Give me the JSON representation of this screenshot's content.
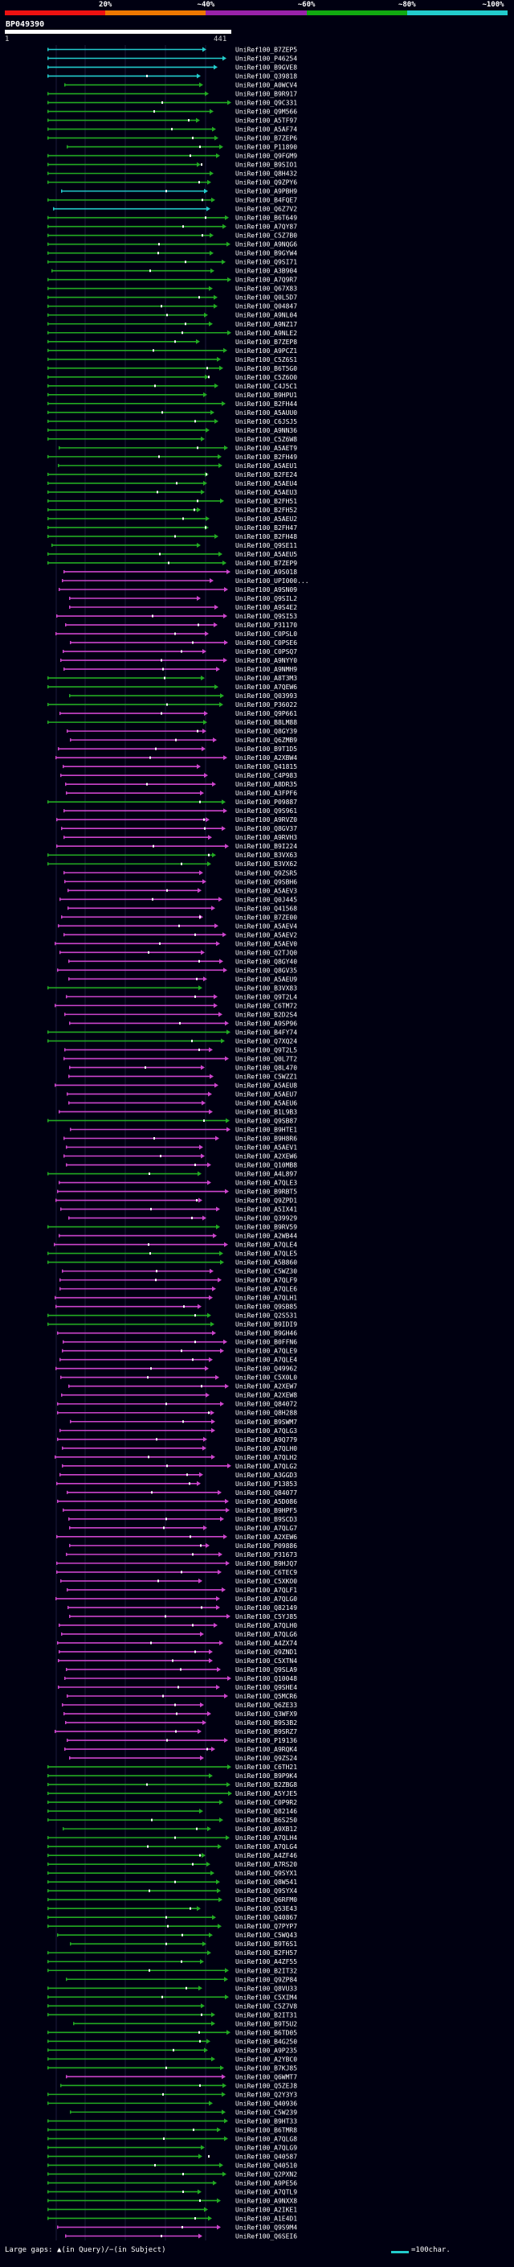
{
  "scale": {
    "labels": [
      "20%",
      "~40%",
      "~60%",
      "~80%",
      "~100%"
    ],
    "colors": [
      "#ee1111",
      "#ee7700",
      "#9922aa",
      "#11aa11",
      "#22cccc"
    ]
  },
  "query": {
    "id": "BP049390",
    "start": "1",
    "end": "441"
  },
  "hits": [
    {
      "label": "UniRef100_B7ZEP5",
      "color": "#22cccc"
    },
    {
      "label": "UniRef100_P46254",
      "color": "#22cccc"
    },
    {
      "label": "UniRef100_B9GVE8",
      "color": "#22cccc"
    },
    {
      "label": "UniRef100_Q39818",
      "color": "#22cccc"
    },
    {
      "label": "UniRef100_A0WCV4",
      "color": "#22aa22"
    },
    {
      "label": "UniRef100_B9R917",
      "color": "#22aa22"
    },
    {
      "label": "UniRef100_Q9C331",
      "color": "#22aa22"
    },
    {
      "label": "UniRef100_Q9M566",
      "color": "#22aa22"
    },
    {
      "label": "UniRef100_A5TF97",
      "color": "#22aa22"
    },
    {
      "label": "UniRef100_A5AF74",
      "color": "#22aa22"
    },
    {
      "label": "UniRef100_B7ZEP6",
      "color": "#22aa22"
    },
    {
      "label": "UniRef100_P11890",
      "color": "#22aa22"
    },
    {
      "label": "UniRef100_Q9FGM9",
      "color": "#22aa22"
    },
    {
      "label": "UniRef100_B9SIO1",
      "color": "#22aa22"
    },
    {
      "label": "UniRef100_Q8H432",
      "color": "#22aa22"
    },
    {
      "label": "UniRef100_Q9ZPY6",
      "color": "#22aa22"
    },
    {
      "label": "UniRef100_A9PBH9",
      "color": "#22cccc"
    },
    {
      "label": "UniRef100_B4FQE7",
      "color": "#22aa22"
    },
    {
      "label": "UniRef100_Q6Z7V2",
      "color": "#22cccc"
    },
    {
      "label": "UniRef100_B6T649",
      "color": "#22aa22"
    },
    {
      "label": "UniRef100_A7QY87",
      "color": "#22aa22"
    },
    {
      "label": "UniRef100_C5Z7B0",
      "color": "#22aa22"
    },
    {
      "label": "UniRef100_A9NQG6",
      "color": "#22aa22"
    },
    {
      "label": "UniRef100_B9GYW4",
      "color": "#22aa22"
    },
    {
      "label": "UniRef100_Q9SI71",
      "color": "#22aa22"
    },
    {
      "label": "UniRef100_A3B904",
      "color": "#22aa22"
    },
    {
      "label": "UniRef100_A7Q9R7",
      "color": "#22aa22"
    },
    {
      "label": "UniRef100_Q67X83",
      "color": "#22aa22"
    },
    {
      "label": "UniRef100_Q0L5D7",
      "color": "#22aa22"
    },
    {
      "label": "UniRef100_Q04847",
      "color": "#22aa22"
    },
    {
      "label": "UniRef100_A9NL04",
      "color": "#22aa22"
    },
    {
      "label": "UniRef100_A9NZ17",
      "color": "#22aa22"
    },
    {
      "label": "UniRef100_A9NLE2",
      "color": "#22aa22"
    },
    {
      "label": "UniRef100_B7ZEP8",
      "color": "#22aa22"
    },
    {
      "label": "UniRef100_A9PCZ1",
      "color": "#22aa22"
    },
    {
      "label": "UniRef100_C5Z6S1",
      "color": "#22aa22"
    },
    {
      "label": "UniRef100_B6T5G0",
      "color": "#22aa22"
    },
    {
      "label": "UniRef100_C5Z6O0",
      "color": "#22aa22"
    },
    {
      "label": "UniRef100_C4J5C1",
      "color": "#22aa22"
    },
    {
      "label": "UniRef100_B9HPU1",
      "color": "#22aa22"
    },
    {
      "label": "UniRef100_B2FH44",
      "color": "#22aa22"
    },
    {
      "label": "UniRef100_A5AUU0",
      "color": "#22aa22"
    },
    {
      "label": "UniRef100_C6JSJ5",
      "color": "#22aa22"
    },
    {
      "label": "UniRef100_A9NN36",
      "color": "#22aa22"
    },
    {
      "label": "UniRef100_C5Z6W8",
      "color": "#22aa22"
    },
    {
      "label": "UniRef100_A5AET9",
      "color": "#22aa22"
    },
    {
      "label": "UniRef100_B2FH49",
      "color": "#22aa22"
    },
    {
      "label": "UniRef100_A5AEU1",
      "color": "#22aa22"
    },
    {
      "label": "UniRef100_B2FE24",
      "color": "#22aa22"
    },
    {
      "label": "UniRef100_A5AEU4",
      "color": "#22aa22"
    },
    {
      "label": "UniRef100_A5AEU3",
      "color": "#22aa22"
    },
    {
      "label": "UniRef100_B2FH51",
      "color": "#22aa22"
    },
    {
      "label": "UniRef100_B2FH52",
      "color": "#22aa22"
    },
    {
      "label": "UniRef100_A5AEU2",
      "color": "#22aa22"
    },
    {
      "label": "UniRef100_B2FH47",
      "color": "#22aa22"
    },
    {
      "label": "UniRef100_B2FH48",
      "color": "#22aa22"
    },
    {
      "label": "UniRef100_Q9SE11",
      "color": "#22aa22"
    },
    {
      "label": "UniRef100_A5AEU5",
      "color": "#22aa22"
    },
    {
      "label": "UniRef100_B7ZEP9",
      "color": "#22aa22"
    },
    {
      "label": "UniRef100_A9S018",
      "color": "#cc44cc"
    },
    {
      "label": "UniRef100_UPI000...",
      "color": "#cc44cc"
    },
    {
      "label": "UniRef100_A9SN09",
      "color": "#cc44cc"
    },
    {
      "label": "UniRef100_Q9SIL2",
      "color": "#cc44cc"
    },
    {
      "label": "UniRef100_A9S4E2",
      "color": "#cc44cc"
    },
    {
      "label": "UniRef100_Q9SI53",
      "color": "#cc44cc"
    },
    {
      "label": "UniRef100_P31170",
      "color": "#cc44cc"
    },
    {
      "label": "UniRef100_C0PSL0",
      "color": "#cc44cc"
    },
    {
      "label": "UniRef100_C0PSE6",
      "color": "#cc44cc"
    },
    {
      "label": "UniRef100_C0PSQ7",
      "color": "#cc44cc"
    },
    {
      "label": "UniRef100_A9NYY0",
      "color": "#cc44cc"
    },
    {
      "label": "UniRef100_A9NMH9",
      "color": "#cc44cc"
    },
    {
      "label": "UniRef100_A8T3M3",
      "color": "#22aa22"
    },
    {
      "label": "UniRef100_A7QEW6",
      "color": "#22aa22"
    },
    {
      "label": "UniRef100_Q03993",
      "color": "#22aa22"
    },
    {
      "label": "UniRef100_P36022",
      "color": "#22aa22"
    },
    {
      "label": "UniRef100_Q9P661",
      "color": "#cc44cc"
    },
    {
      "label": "UniRef100_B8LM88",
      "color": "#22aa22"
    },
    {
      "label": "UniRef100_Q8GY39",
      "color": "#cc44cc"
    },
    {
      "label": "UniRef100_Q6ZMB9",
      "color": "#cc44cc"
    },
    {
      "label": "UniRef100_B9T1D5",
      "color": "#cc44cc"
    },
    {
      "label": "UniRef100_A2XBW4",
      "color": "#cc44cc"
    },
    {
      "label": "UniRef100_Q41815",
      "color": "#cc44cc"
    },
    {
      "label": "UniRef100_C4P983",
      "color": "#cc44cc"
    },
    {
      "label": "UniRef100_A8DR35",
      "color": "#cc44cc"
    },
    {
      "label": "UniRef100_A3FPF6",
      "color": "#cc44cc"
    },
    {
      "label": "UniRef100_P09887",
      "color": "#22aa22"
    },
    {
      "label": "UniRef100_Q9S961",
      "color": "#cc44cc"
    },
    {
      "label": "UniRef100_A9RVZ0",
      "color": "#cc44cc"
    },
    {
      "label": "UniRef100_Q8GV37",
      "color": "#cc44cc"
    },
    {
      "label": "UniRef100_A9RVH3",
      "color": "#cc44cc"
    },
    {
      "label": "UniRef100_B9I224",
      "color": "#cc44cc"
    },
    {
      "label": "UniRef100_B3VX63",
      "color": "#22aa22"
    },
    {
      "label": "UniRef100_B3VX62",
      "color": "#22aa22"
    },
    {
      "label": "UniRef100_Q9ZSR5",
      "color": "#cc44cc"
    },
    {
      "label": "UniRef100_Q9SBH6",
      "color": "#cc44cc"
    },
    {
      "label": "UniRef100_A5AEV3",
      "color": "#cc44cc"
    },
    {
      "label": "UniRef100_Q0J445",
      "color": "#cc44cc"
    },
    {
      "label": "UniRef100_Q41568",
      "color": "#cc44cc"
    },
    {
      "label": "UniRef100_B7ZE00",
      "color": "#cc44cc"
    },
    {
      "label": "UniRef100_A5AEV4",
      "color": "#cc44cc"
    },
    {
      "label": "UniRef100_A5AEV2",
      "color": "#cc44cc"
    },
    {
      "label": "UniRef100_A5AEV0",
      "color": "#cc44cc"
    },
    {
      "label": "UniRef100_Q2TJQ0",
      "color": "#cc44cc"
    },
    {
      "label": "UniRef100_Q8GY40",
      "color": "#cc44cc"
    },
    {
      "label": "UniRef100_Q8GV35",
      "color": "#cc44cc"
    },
    {
      "label": "UniRef100_A5AEU9",
      "color": "#cc44cc"
    },
    {
      "label": "UniRef100_B3VX83",
      "color": "#22aa22"
    },
    {
      "label": "UniRef100_Q9T2L4",
      "color": "#cc44cc"
    },
    {
      "label": "UniRef100_C6TM72",
      "color": "#cc44cc"
    },
    {
      "label": "UniRef100_B2D2S4",
      "color": "#cc44cc"
    },
    {
      "label": "UniRef100_A9SP96",
      "color": "#cc44cc"
    },
    {
      "label": "UniRef100_B4FY74",
      "color": "#22aa22"
    },
    {
      "label": "UniRef100_Q7XQ24",
      "color": "#22aa22"
    },
    {
      "label": "UniRef100_Q9T2L5",
      "color": "#cc44cc"
    },
    {
      "label": "UniRef100_Q0L7T2",
      "color": "#cc44cc"
    },
    {
      "label": "UniRef100_Q8L470",
      "color": "#cc44cc"
    },
    {
      "label": "UniRef100_C5WZZ1",
      "color": "#cc44cc"
    },
    {
      "label": "UniRef100_A5AEU8",
      "color": "#cc44cc"
    },
    {
      "label": "UniRef100_A5AEU7",
      "color": "#cc44cc"
    },
    {
      "label": "UniRef100_A5AEU6",
      "color": "#cc44cc"
    },
    {
      "label": "UniRef100_B1L9B3",
      "color": "#cc44cc"
    },
    {
      "label": "UniRef100_Q9SB87",
      "color": "#22aa22"
    },
    {
      "label": "UniRef100_B9HTE1",
      "color": "#cc44cc"
    },
    {
      "label": "UniRef100_B9H8R6",
      "color": "#cc44cc"
    },
    {
      "label": "UniRef100_A5AEV1",
      "color": "#cc44cc"
    },
    {
      "label": "UniRef100_A2XEW6",
      "color": "#cc44cc"
    },
    {
      "label": "UniRef100_Q10MB8",
      "color": "#cc44cc"
    },
    {
      "label": "UniRef100_A4L897",
      "color": "#22aa22"
    },
    {
      "label": "UniRef100_A7QLE3",
      "color": "#cc44cc"
    },
    {
      "label": "UniRef100_B9RBT5",
      "color": "#cc44cc"
    },
    {
      "label": "UniRef100_Q9ZPD1",
      "color": "#cc44cc"
    },
    {
      "label": "UniRef100_A5IX41",
      "color": "#cc44cc"
    },
    {
      "label": "UniRef100_Q39929",
      "color": "#cc44cc"
    },
    {
      "label": "UniRef100_B9RV59",
      "color": "#22aa22"
    },
    {
      "label": "UniRef100_A2WB44",
      "color": "#cc44cc"
    },
    {
      "label": "UniRef100_A7QLE4",
      "color": "#cc44cc"
    },
    {
      "label": "UniRef100_A7QLE5",
      "color": "#22aa22"
    },
    {
      "label": "UniRef100_A5B860",
      "color": "#22aa22"
    },
    {
      "label": "UniRef100_C5WZ30",
      "color": "#cc44cc"
    },
    {
      "label": "UniRef100_A7QLF9",
      "color": "#cc44cc"
    },
    {
      "label": "UniRef100_A7QLE6",
      "color": "#cc44cc"
    },
    {
      "label": "UniRef100_A7QLH1",
      "color": "#cc44cc"
    },
    {
      "label": "UniRef100_Q9SB85",
      "color": "#cc44cc"
    },
    {
      "label": "UniRef100_Q2S531",
      "color": "#22aa22"
    },
    {
      "label": "UniRef100_B9IDI9",
      "color": "#22aa22"
    },
    {
      "label": "UniRef100_B9GH46",
      "color": "#cc44cc"
    },
    {
      "label": "UniRef100_B0FFN6",
      "color": "#cc44cc"
    },
    {
      "label": "UniRef100_A7QLE9",
      "color": "#cc44cc"
    },
    {
      "label": "UniRef100_A7QLE4",
      "color": "#cc44cc"
    },
    {
      "label": "UniRef100_Q49962",
      "color": "#cc44cc"
    },
    {
      "label": "UniRef100_C5X0L0",
      "color": "#cc44cc"
    },
    {
      "label": "UniRef100_A2XEW7",
      "color": "#cc44cc"
    },
    {
      "label": "UniRef100_A2XEW8",
      "color": "#cc44cc"
    },
    {
      "label": "UniRef100_Q84072",
      "color": "#cc44cc"
    },
    {
      "label": "UniRef100_Q8H288",
      "color": "#cc44cc"
    },
    {
      "label": "UniRef100_B9SWM7",
      "color": "#cc44cc"
    },
    {
      "label": "UniRef100_A7QLG3",
      "color": "#cc44cc"
    },
    {
      "label": "UniRef100_A9Q779",
      "color": "#cc44cc"
    },
    {
      "label": "UniRef100_A7QLH0",
      "color": "#cc44cc"
    },
    {
      "label": "UniRef100_A7QLH2",
      "color": "#cc44cc"
    },
    {
      "label": "UniRef100_A7QLG2",
      "color": "#cc44cc"
    },
    {
      "label": "UniRef100_A3GGD3",
      "color": "#cc44cc"
    },
    {
      "label": "UniRef100_P13853",
      "color": "#cc44cc"
    },
    {
      "label": "UniRef100_Q84077",
      "color": "#cc44cc"
    },
    {
      "label": "UniRef100_A5D086",
      "color": "#cc44cc"
    },
    {
      "label": "UniRef100_B9HPF5",
      "color": "#cc44cc"
    },
    {
      "label": "UniRef100_B9SCD3",
      "color": "#cc44cc"
    },
    {
      "label": "UniRef100_A7QLG7",
      "color": "#cc44cc"
    },
    {
      "label": "UniRef100_A2XEW6",
      "color": "#cc44cc"
    },
    {
      "label": "UniRef100_P09886",
      "color": "#cc44cc"
    },
    {
      "label": "UniRef100_P31673",
      "color": "#cc44cc"
    },
    {
      "label": "UniRef100_B9HJQ7",
      "color": "#cc44cc"
    },
    {
      "label": "UniRef100_C6TEC9",
      "color": "#cc44cc"
    },
    {
      "label": "UniRef100_C5XKO0",
      "color": "#cc44cc"
    },
    {
      "label": "UniRef100_A7QLF1",
      "color": "#cc44cc"
    },
    {
      "label": "UniRef100_A7QLG0",
      "color": "#cc44cc"
    },
    {
      "label": "UniRef100_Q82149",
      "color": "#cc44cc"
    },
    {
      "label": "UniRef100_C5YJ85",
      "color": "#cc44cc"
    },
    {
      "label": "UniRef100_A7QLH0",
      "color": "#cc44cc"
    },
    {
      "label": "UniRef100_A7QLG6",
      "color": "#cc44cc"
    },
    {
      "label": "UniRef100_A4ZX74",
      "color": "#cc44cc"
    },
    {
      "label": "UniRef100_Q9ZND1",
      "color": "#cc44cc"
    },
    {
      "label": "UniRef100_C5XTN4",
      "color": "#cc44cc"
    },
    {
      "label": "UniRef100_Q9SLA9",
      "color": "#cc44cc"
    },
    {
      "label": "UniRef100_Q10048",
      "color": "#cc44cc"
    },
    {
      "label": "UniRef100_Q9SHE4",
      "color": "#cc44cc"
    },
    {
      "label": "UniRef100_Q5MCR6",
      "color": "#cc44cc"
    },
    {
      "label": "UniRef100_Q6ZE33",
      "color": "#cc44cc"
    },
    {
      "label": "UniRef100_Q3WFX9",
      "color": "#cc44cc"
    },
    {
      "label": "UniRef100_B9S3B2",
      "color": "#cc44cc"
    },
    {
      "label": "UniRef100_B9SRZ7",
      "color": "#cc44cc"
    },
    {
      "label": "UniRef100_P19136",
      "color": "#cc44cc"
    },
    {
      "label": "UniRef100_A9RQK4",
      "color": "#cc44cc"
    },
    {
      "label": "UniRef100_Q9ZS24",
      "color": "#cc44cc"
    },
    {
      "label": "UniRef100_C6TH21",
      "color": "#22aa22"
    },
    {
      "label": "UniRef100_B9P9K4",
      "color": "#22aa22"
    },
    {
      "label": "UniRef100_B2ZBG8",
      "color": "#22aa22"
    },
    {
      "label": "UniRef100_A5YJE5",
      "color": "#22aa22"
    },
    {
      "label": "UniRef100_C0P9R2",
      "color": "#22aa22"
    },
    {
      "label": "UniRef100_Q82146",
      "color": "#22aa22"
    },
    {
      "label": "UniRef100_B6S250",
      "color": "#22aa22"
    },
    {
      "label": "UniRef100_A9XB12",
      "color": "#22aa22"
    },
    {
      "label": "UniRef100_A7QLH4",
      "color": "#22aa22"
    },
    {
      "label": "UniRef100_A7QLG4",
      "color": "#22aa22"
    },
    {
      "label": "UniRef100_A4ZF46",
      "color": "#22aa22"
    },
    {
      "label": "UniRef100_A7RS20",
      "color": "#22aa22"
    },
    {
      "label": "UniRef100_Q9SYX1",
      "color": "#22aa22"
    },
    {
      "label": "UniRef100_Q8W541",
      "color": "#22aa22"
    },
    {
      "label": "UniRef100_Q9SYX4",
      "color": "#22aa22"
    },
    {
      "label": "UniRef100_Q6RFM0",
      "color": "#22aa22"
    },
    {
      "label": "UniRef100_Q53E43",
      "color": "#22aa22"
    },
    {
      "label": "UniRef100_Q40867",
      "color": "#22aa22"
    },
    {
      "label": "UniRef100_Q7PYP7",
      "color": "#22aa22"
    },
    {
      "label": "UniRef100_C5WQ43",
      "color": "#22aa22"
    },
    {
      "label": "UniRef100_B9T6S1",
      "color": "#22aa22"
    },
    {
      "label": "UniRef100_B2FH57",
      "color": "#22aa22"
    },
    {
      "label": "UniRef100_A4ZF55",
      "color": "#22aa22"
    },
    {
      "label": "UniRef100_B2IT32",
      "color": "#22aa22"
    },
    {
      "label": "UniRef100_Q9ZP84",
      "color": "#22aa22"
    },
    {
      "label": "UniRef100_Q8VU33",
      "color": "#22aa22"
    },
    {
      "label": "UniRef100_C5XIM4",
      "color": "#22aa22"
    },
    {
      "label": "UniRef100_C5Z7V8",
      "color": "#22aa22"
    },
    {
      "label": "UniRef100_B2IT31",
      "color": "#22aa22"
    },
    {
      "label": "UniRef100_B9T5U2",
      "color": "#22aa22"
    },
    {
      "label": "UniRef100_B6TD05",
      "color": "#22aa22"
    },
    {
      "label": "UniRef100_B4G250",
      "color": "#22aa22"
    },
    {
      "label": "UniRef100_A9P235",
      "color": "#22aa22"
    },
    {
      "label": "UniRef100_A2YBC0",
      "color": "#22aa22"
    },
    {
      "label": "UniRef100_B7KJ85",
      "color": "#22aa22"
    },
    {
      "label": "UniRef100_Q6WMT7",
      "color": "#cc44cc"
    },
    {
      "label": "UniRef100_Q5ZEJ8",
      "color": "#22aa22"
    },
    {
      "label": "UniRef100_Q2Y3Y3",
      "color": "#22aa22"
    },
    {
      "label": "UniRef100_Q40936",
      "color": "#22aa22"
    },
    {
      "label": "UniRef100_C5W239",
      "color": "#22aa22"
    },
    {
      "label": "UniRef100_B9HT33",
      "color": "#22aa22"
    },
    {
      "label": "UniRef100_B6TMR8",
      "color": "#22aa22"
    },
    {
      "label": "UniRef100_A7QLG8",
      "color": "#22aa22"
    },
    {
      "label": "UniRef100_A7QLG9",
      "color": "#22aa22"
    },
    {
      "label": "UniRef100_Q40587",
      "color": "#22aa22"
    },
    {
      "label": "UniRef100_Q40510",
      "color": "#22aa22"
    },
    {
      "label": "UniRef100_Q2PXN2",
      "color": "#22aa22"
    },
    {
      "label": "UniRef100_A9PE56",
      "color": "#22aa22"
    },
    {
      "label": "UniRef100_A7QTL9",
      "color": "#22aa22"
    },
    {
      "label": "UniRef100_A9NXX8",
      "color": "#22aa22"
    },
    {
      "label": "UniRef100_A2IKE1",
      "color": "#22aa22"
    },
    {
      "label": "UniRef100_A1E4D1",
      "color": "#22aa22"
    },
    {
      "label": "UniRef100_Q9S9M4",
      "color": "#cc44cc"
    },
    {
      "label": "UniRef100_Q6SEI6",
      "color": "#cc44cc"
    }
  ],
  "footer": {
    "text": "Large gaps: ▲(in Query)/−(in Subject)",
    "legend": "=100char."
  }
}
